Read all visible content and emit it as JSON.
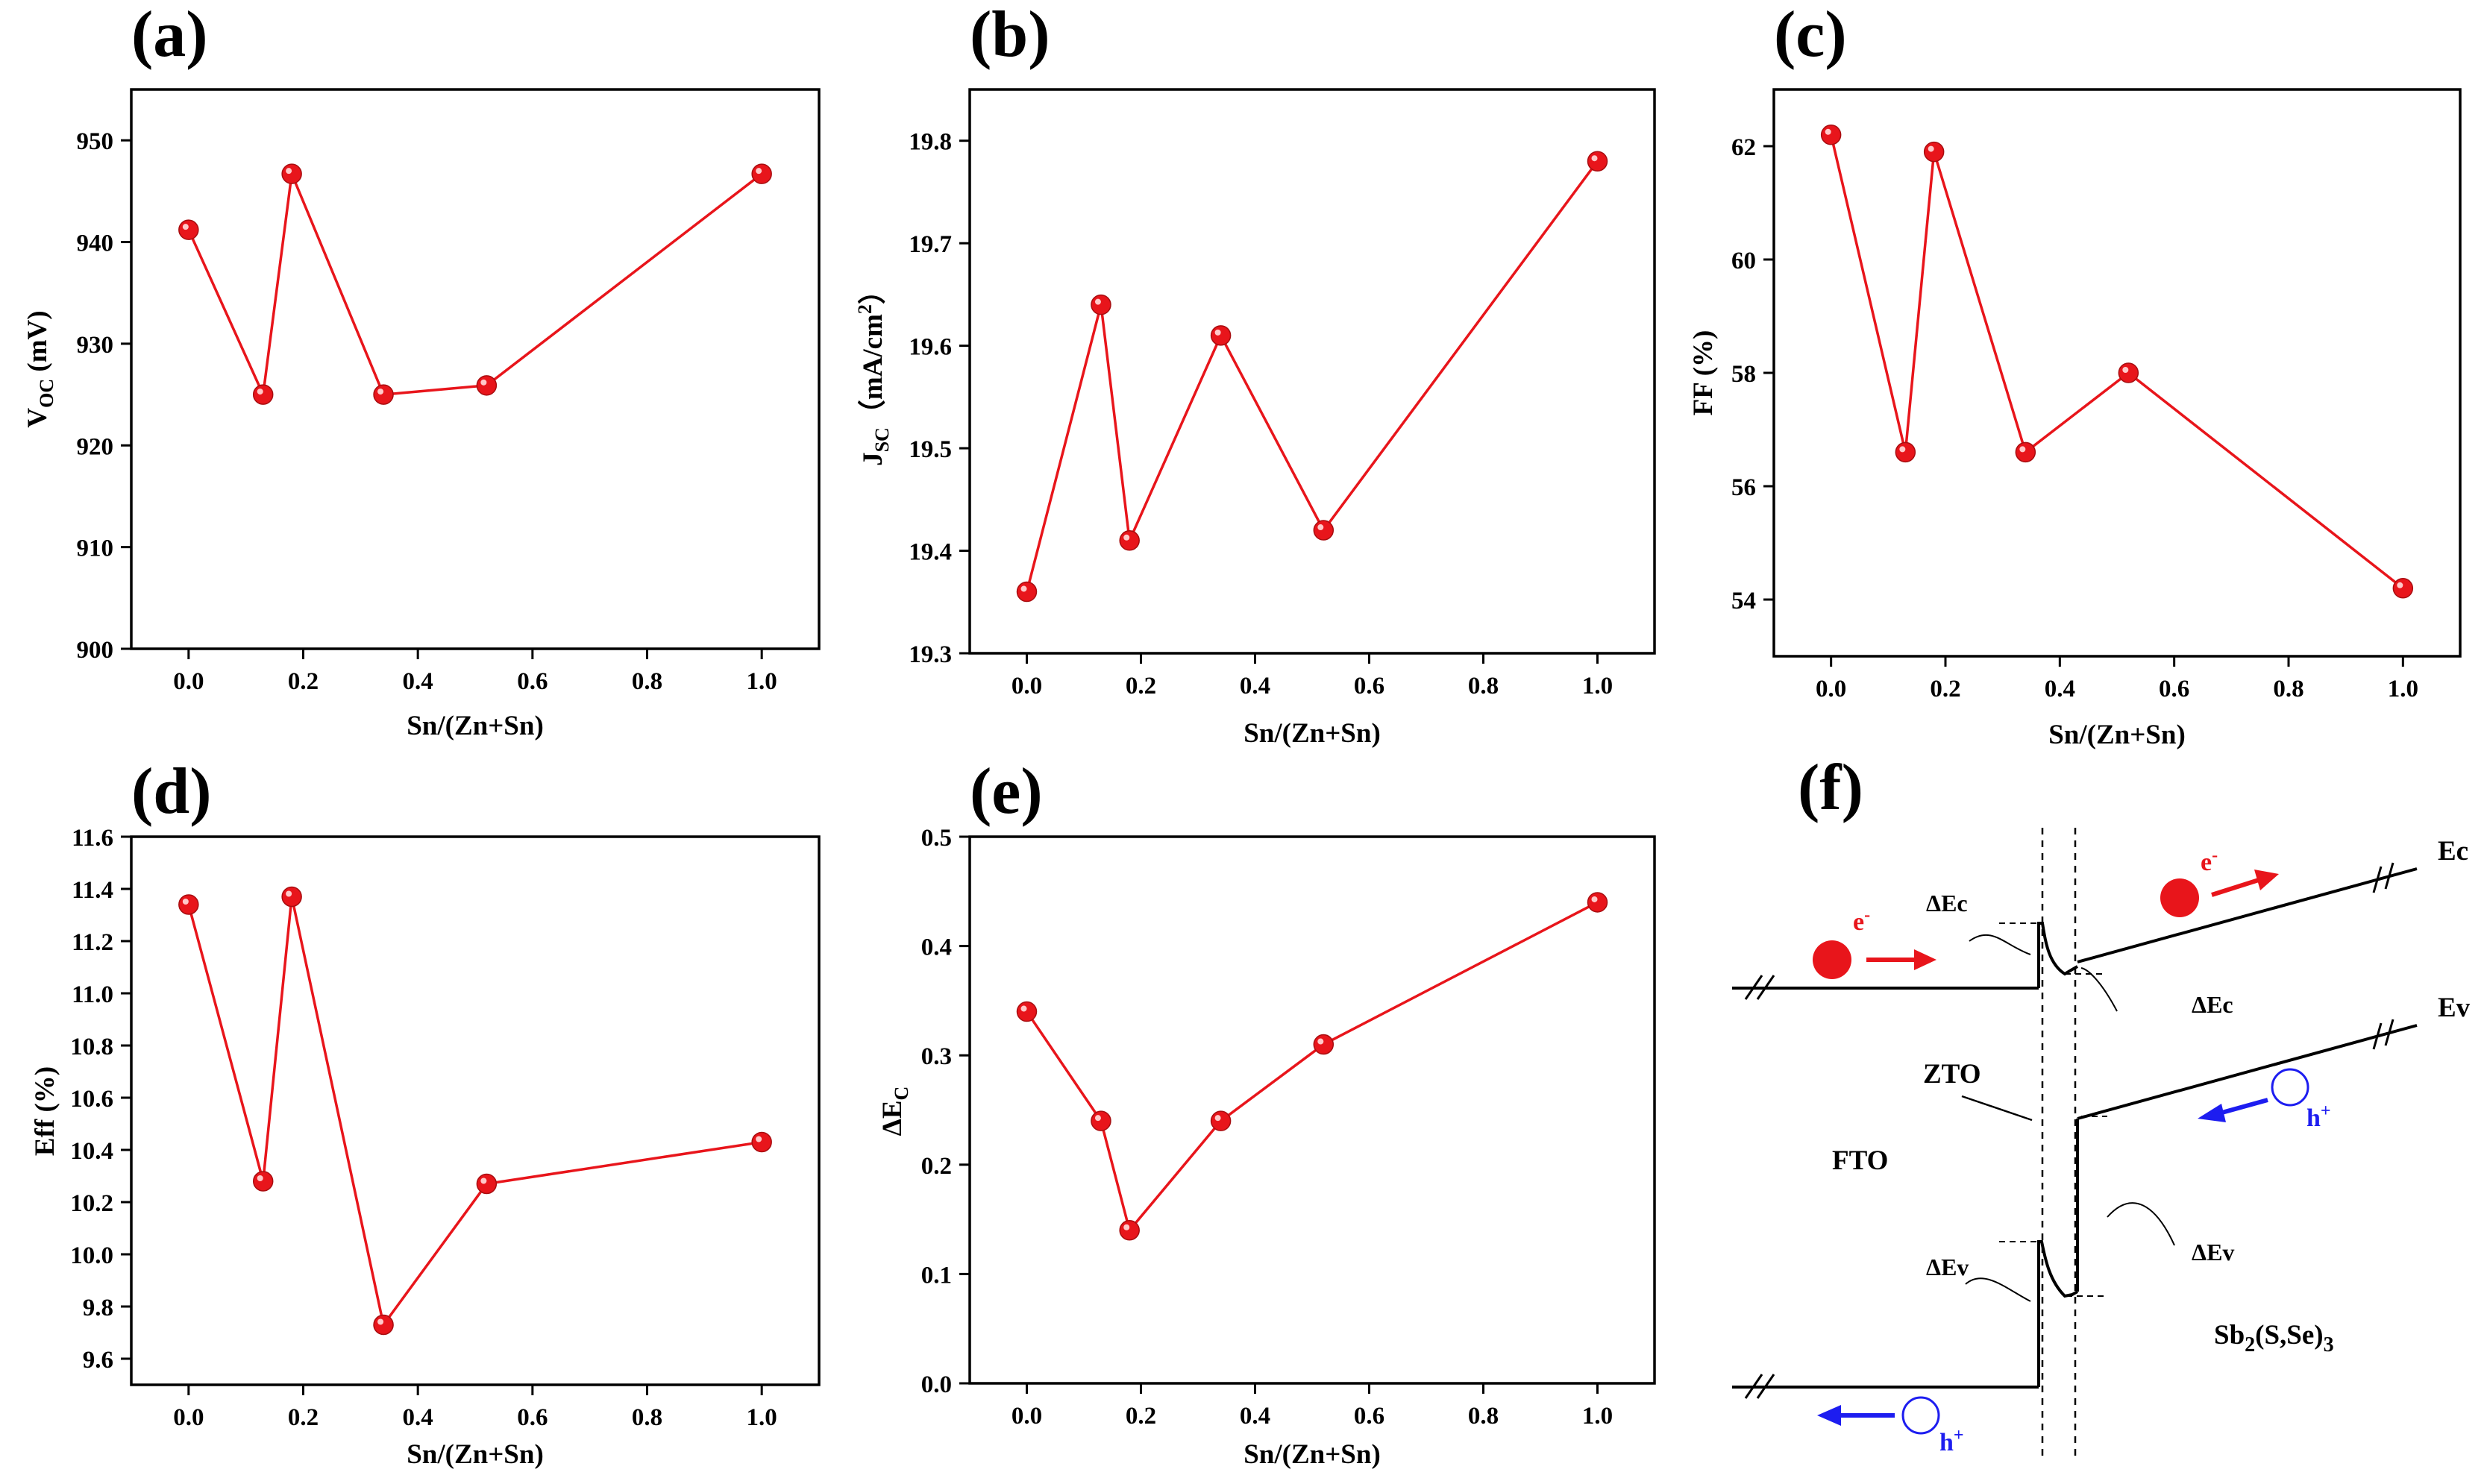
{
  "chart_data": [
    {
      "panel": "(a)",
      "type": "line",
      "xlabel": "Sn/(Zn+Sn)",
      "ylabel": {
        "base": "V",
        "sub": "OC",
        "rest": " (mV)"
      },
      "xlim": [
        -0.1,
        1.1
      ],
      "ylim": [
        900,
        955
      ],
      "xticks": [
        0.0,
        0.2,
        0.4,
        0.6,
        0.8,
        1.0
      ],
      "xtick_labels": [
        "0.0",
        "0.2",
        "0.4",
        "0.6",
        "0.8",
        "1.0"
      ],
      "yticks": [
        900,
        910,
        920,
        930,
        940,
        950
      ],
      "ytick_labels": [
        "900",
        "910",
        "920",
        "930",
        "940",
        "950"
      ],
      "series": [
        {
          "name": "",
          "color": "#e8151b",
          "x": [
            0.0,
            0.13,
            0.18,
            0.34,
            0.52,
            1.0
          ],
          "y": [
            941.2,
            925.0,
            946.7,
            925.0,
            925.9,
            946.7
          ]
        }
      ]
    },
    {
      "panel": "(b)",
      "type": "line",
      "xlabel": "Sn/(Zn+Sn)",
      "ylabel": {
        "base": "J",
        "sub": "SC",
        "rest": "（mA/cm",
        "sup": "2",
        "tail": "）"
      },
      "xlim": [
        -0.1,
        1.1
      ],
      "ylim": [
        19.3,
        19.85
      ],
      "xticks": [
        0.0,
        0.2,
        0.4,
        0.6,
        0.8,
        1.0
      ],
      "xtick_labels": [
        "0.0",
        "0.2",
        "0.4",
        "0.6",
        "0.8",
        "1.0"
      ],
      "yticks": [
        19.3,
        19.4,
        19.5,
        19.6,
        19.7,
        19.8
      ],
      "ytick_labels": [
        "19.3",
        "19.4",
        "19.5",
        "19.6",
        "19.7",
        "19.8"
      ],
      "series": [
        {
          "name": "",
          "color": "#e8151b",
          "x": [
            0.0,
            0.13,
            0.18,
            0.34,
            0.52,
            1.0
          ],
          "y": [
            19.36,
            19.64,
            19.41,
            19.61,
            19.42,
            19.78
          ]
        }
      ]
    },
    {
      "panel": "(c)",
      "type": "line",
      "xlabel": "Sn/(Zn+Sn)",
      "ylabel": {
        "base": "FF (%)"
      },
      "xlim": [
        -0.1,
        1.1
      ],
      "ylim": [
        53,
        63
      ],
      "xticks": [
        0.0,
        0.2,
        0.4,
        0.6,
        0.8,
        1.0
      ],
      "xtick_labels": [
        "0.0",
        "0.2",
        "0.4",
        "0.6",
        "0.8",
        "1.0"
      ],
      "yticks": [
        54,
        56,
        58,
        60,
        62
      ],
      "ytick_labels": [
        "54",
        "56",
        "58",
        "60",
        "62"
      ],
      "series": [
        {
          "name": "",
          "color": "#e8151b",
          "x": [
            0.0,
            0.13,
            0.18,
            0.34,
            0.52,
            1.0
          ],
          "y": [
            62.2,
            56.6,
            61.9,
            56.6,
            58.0,
            54.2
          ]
        }
      ]
    },
    {
      "panel": "(d)",
      "type": "line",
      "xlabel": "Sn/(Zn+Sn)",
      "ylabel": {
        "base": "Eff (%)"
      },
      "xlim": [
        -0.1,
        1.1
      ],
      "ylim": [
        9.5,
        11.6
      ],
      "xticks": [
        0.0,
        0.2,
        0.4,
        0.6,
        0.8,
        1.0
      ],
      "xtick_labels": [
        "0.0",
        "0.2",
        "0.4",
        "0.6",
        "0.8",
        "1.0"
      ],
      "yticks": [
        9.6,
        9.8,
        10.0,
        10.2,
        10.4,
        10.6,
        10.8,
        11.0,
        11.2,
        11.4,
        11.6
      ],
      "ytick_labels": [
        "9.6",
        "9.8",
        "10.0",
        "10.2",
        "10.4",
        "10.6",
        "10.8",
        "11.0",
        "11.2",
        "11.4",
        "11.6"
      ],
      "series": [
        {
          "name": "",
          "color": "#e8151b",
          "x": [
            0.0,
            0.13,
            0.18,
            0.34,
            0.52,
            1.0
          ],
          "y": [
            11.34,
            10.28,
            11.37,
            9.73,
            10.27,
            10.43
          ]
        }
      ]
    },
    {
      "panel": "(e)",
      "type": "line",
      "xlabel": "Sn/(Zn+Sn)",
      "ylabel": {
        "base": "ΔE",
        "sub": "C"
      },
      "xlim": [
        -0.1,
        1.1
      ],
      "ylim": [
        0.0,
        0.5
      ],
      "xticks": [
        0.0,
        0.2,
        0.4,
        0.6,
        0.8,
        1.0
      ],
      "xtick_labels": [
        "0.0",
        "0.2",
        "0.4",
        "0.6",
        "0.8",
        "1.0"
      ],
      "yticks": [
        0.0,
        0.1,
        0.2,
        0.3,
        0.4,
        0.5
      ],
      "ytick_labels": [
        "0.0",
        "0.1",
        "0.2",
        "0.3",
        "0.4",
        "0.5"
      ],
      "series": [
        {
          "name": "",
          "color": "#e8151b",
          "x": [
            0.0,
            0.13,
            0.18,
            0.34,
            0.52,
            1.0
          ],
          "y": [
            0.34,
            0.24,
            0.14,
            0.24,
            0.31,
            0.44
          ]
        }
      ]
    }
  ],
  "diagram": {
    "panel": "(f)",
    "labels": {
      "ec": "Ec",
      "ev": "Ev",
      "dec_left": "ΔEc",
      "dec_right": "ΔEc",
      "dev_left": "ΔEv",
      "dev_right": "ΔEv",
      "zto": "ZTO",
      "fto": "FTO",
      "sb_base": "Sb",
      "sb_sub1": "2",
      "sb_mid": "(S,Se)",
      "sb_sub2": "3",
      "electron": "e",
      "electron_sup": "-",
      "hole": "h",
      "hole_sup": "+"
    },
    "colors": {
      "electron": "#e8151b",
      "hole": "#1d1df0"
    }
  }
}
